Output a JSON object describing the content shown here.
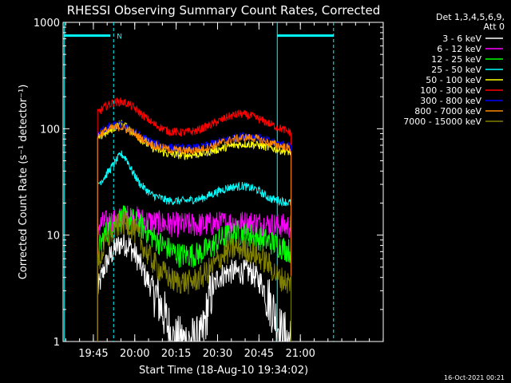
{
  "chart_data": {
    "type": "line",
    "title": "RHESSI Observing Summary Count Rates, Corrected",
    "xlabel": "Start Time (18-Aug-10 19:34:02)",
    "ylabel": "Corrected Count Rate (s⁻¹ detector⁻¹)",
    "y_scale": "log",
    "ylim": [
      1,
      1000
    ],
    "xlim_minutes": [
      0,
      116
    ],
    "y_ticks": [
      "1",
      "10",
      "100",
      "1000"
    ],
    "x_ticks": [
      {
        "label": "19:45",
        "t": 10.97
      },
      {
        "label": "20:00",
        "t": 25.97
      },
      {
        "label": "20:15",
        "t": 40.97
      },
      {
        "label": "20:30",
        "t": 55.97
      },
      {
        "label": "20:45",
        "t": 70.97
      },
      {
        "label": "21:00",
        "t": 85.97
      }
    ],
    "legend_header": [
      "Det 1,3,4,5,6,9,",
      "Att 0"
    ],
    "legend_position": "top-right",
    "data_start_minute": 12.5,
    "data_end_minute": 82.6,
    "flag_line": {
      "label": "N",
      "start": 0,
      "end": 18.3,
      "start2": 77.6,
      "end2": 98,
      "level": 750,
      "color": "#00ffff"
    },
    "vlines_dashed": [
      18.3,
      98
    ],
    "vlines_solid": [
      0.5,
      77.6
    ],
    "series": [
      {
        "name": "3 - 6 keV",
        "color": "#ffffff",
        "x": [
          12.5,
          15,
          18,
          21,
          24,
          27,
          30,
          33,
          36,
          40,
          45,
          50,
          53,
          56,
          60,
          64,
          68,
          72,
          76,
          79,
          82.6
        ],
        "y": [
          3,
          5,
          7,
          8.5,
          8,
          6,
          4,
          3,
          2,
          1,
          1,
          1,
          2.5,
          4,
          4.5,
          4.5,
          4.5,
          3.5,
          2,
          1.2,
          1
        ]
      },
      {
        "name": "6 - 12 keV",
        "color": "#ff00ff",
        "x": [
          12.5,
          15,
          20,
          24,
          30,
          40,
          50,
          60,
          70,
          76,
          82.6
        ],
        "y": [
          12,
          13,
          14,
          15,
          13.5,
          12.5,
          12.5,
          13,
          13,
          12.5,
          12
        ]
      },
      {
        "name": "12 - 25 keV",
        "color": "#00ff00",
        "x": [
          12.5,
          15,
          18,
          22,
          25,
          30,
          36,
          42,
          48,
          53,
          58,
          63,
          68,
          73,
          78,
          82.6
        ],
        "y": [
          7,
          10,
          13,
          14.5,
          14,
          11,
          8,
          6.5,
          6.5,
          7.5,
          9.5,
          10.5,
          10,
          9,
          8,
          7
        ]
      },
      {
        "name": "25 - 50 keV",
        "color": "#00ffff",
        "x": [
          12.5,
          15,
          18,
          21,
          23,
          25,
          28,
          32,
          38,
          44,
          50,
          55,
          60,
          65,
          70,
          75,
          82.6
        ],
        "y": [
          30,
          35,
          45,
          58,
          52,
          40,
          30,
          24,
          21,
          21,
          22,
          25,
          28,
          29,
          27,
          22,
          20
        ]
      },
      {
        "name": "50 - 100 keV",
        "color": "#ffff00",
        "x": [
          12.5,
          15,
          18,
          21,
          24,
          28,
          33,
          38,
          44,
          50,
          56,
          62,
          66,
          70,
          75,
          82.6
        ],
        "y": [
          80,
          90,
          100,
          112,
          100,
          80,
          65,
          58,
          56,
          58,
          64,
          70,
          72,
          71,
          66,
          60
        ]
      },
      {
        "name": "100 - 300 keV",
        "color": "#ff0000",
        "x": [
          12.5,
          15,
          18,
          21,
          24,
          28,
          33,
          38,
          43,
          48,
          54,
          60,
          64,
          68,
          72,
          77,
          82.6
        ],
        "y": [
          140,
          160,
          175,
          180,
          170,
          140,
          110,
          95,
          92,
          95,
          110,
          130,
          138,
          132,
          120,
          105,
          92
        ]
      },
      {
        "name": "300 - 800 keV",
        "color": "#0000ff",
        "x": [
          12.5,
          15,
          18,
          21,
          24,
          28,
          33,
          38,
          44,
          50,
          56,
          62,
          66,
          70,
          75,
          82.6
        ],
        "y": [
          88,
          100,
          106,
          108,
          100,
          85,
          73,
          67,
          65,
          67,
          75,
          83,
          86,
          84,
          76,
          68
        ]
      },
      {
        "name": "800 - 7000 keV",
        "color": "#ff8800",
        "x": [
          12.5,
          15,
          18,
          21,
          24,
          28,
          33,
          38,
          44,
          50,
          56,
          62,
          66,
          70,
          75,
          82.6
        ],
        "y": [
          85,
          95,
          102,
          104,
          96,
          82,
          70,
          64,
          62,
          64,
          72,
          80,
          83,
          81,
          73,
          65
        ]
      },
      {
        "name": "7000 - 15000 keV",
        "color": "#808000",
        "x": [
          12.5,
          15,
          18,
          21,
          24,
          27,
          30,
          34,
          40,
          46,
          50,
          54,
          58,
          62,
          66,
          70,
          74,
          78,
          82.6
        ],
        "y": [
          5,
          8,
          11,
          13,
          12.5,
          10,
          7,
          5,
          3.7,
          3.6,
          4,
          5,
          6.5,
          7.5,
          7.5,
          6.5,
          5.5,
          4,
          3.5
        ]
      }
    ],
    "footer_timestamp": "16-Oct-2021 00:21"
  }
}
